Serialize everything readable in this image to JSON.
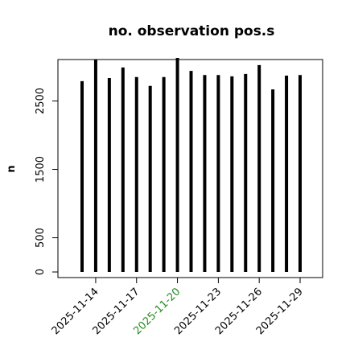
{
  "chart_data": {
    "type": "bar",
    "style": "spikes",
    "title": "no. observation pos.s",
    "ylabel": "n",
    "x": [
      "2025-11-13",
      "2025-11-14",
      "2025-11-15",
      "2025-11-16",
      "2025-11-17",
      "2025-11-18",
      "2025-11-19",
      "2025-11-20",
      "2025-11-21",
      "2025-11-22",
      "2025-11-23",
      "2025-11-24",
      "2025-11-25",
      "2025-11-26",
      "2025-11-27",
      "2025-11-28",
      "2025-11-29"
    ],
    "values": [
      2790,
      3110,
      2835,
      2990,
      2850,
      2720,
      2850,
      3130,
      2940,
      2880,
      2880,
      2860,
      2895,
      3025,
      2670,
      2870,
      2880
    ],
    "color": "#000000",
    "ylim": [
      -82,
      3106
    ],
    "yticks": [
      0,
      500,
      1500,
      2500
    ],
    "xticks": [
      "2025-11-14",
      "2025-11-17",
      "2025-11-20",
      "2025-11-23",
      "2025-11-26",
      "2025-11-29"
    ],
    "xtick_colors": [
      "#000000",
      "#000000",
      "#228b22",
      "#000000",
      "#000000",
      "#000000"
    ]
  }
}
